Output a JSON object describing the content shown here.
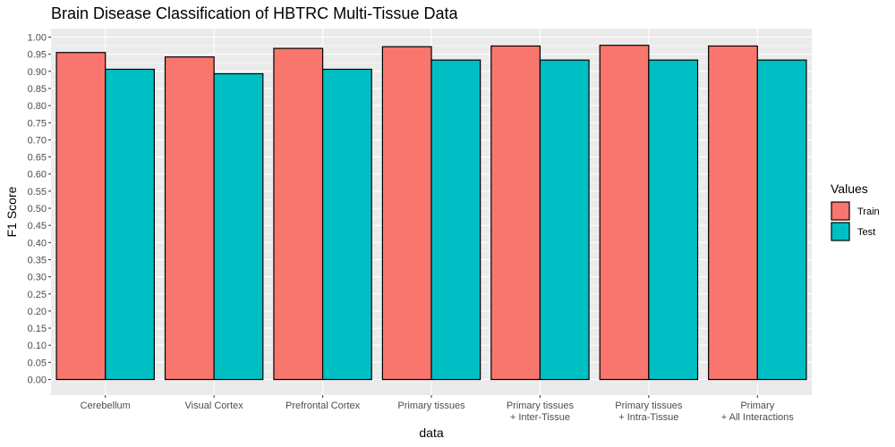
{
  "chart_data": {
    "type": "bar",
    "title": "Brain Disease Classification of HBTRC Multi-Tissue Data",
    "xlabel": "data",
    "ylabel": "F1 Score",
    "ylim": [
      0,
      1.0
    ],
    "yticks": [
      "0.00",
      "0.05",
      "0.10",
      "0.15",
      "0.20",
      "0.25",
      "0.30",
      "0.35",
      "0.40",
      "0.45",
      "0.50",
      "0.55",
      "0.60",
      "0.65",
      "0.70",
      "0.75",
      "0.80",
      "0.85",
      "0.90",
      "0.95",
      "1.00"
    ],
    "categories": [
      [
        "Cerebellum"
      ],
      [
        "Visual Cortex"
      ],
      [
        "Prefrontal Cortex"
      ],
      [
        "Primary tissues"
      ],
      [
        "Primary tissues",
        "+ Inter-Tissue"
      ],
      [
        "Primary tissues",
        "+ Intra-Tissue"
      ],
      [
        "Primary",
        "+ All Interactions"
      ]
    ],
    "series": [
      {
        "name": "Train",
        "color": "#F8766D",
        "values": [
          0.955,
          0.942,
          0.967,
          0.972,
          0.974,
          0.976,
          0.974
        ]
      },
      {
        "name": "Test",
        "color": "#00BFC4",
        "values": [
          0.906,
          0.893,
          0.906,
          0.933,
          0.933,
          0.933,
          0.933
        ]
      }
    ],
    "legend": {
      "title": "Values",
      "position": "right"
    },
    "grid": true
  }
}
